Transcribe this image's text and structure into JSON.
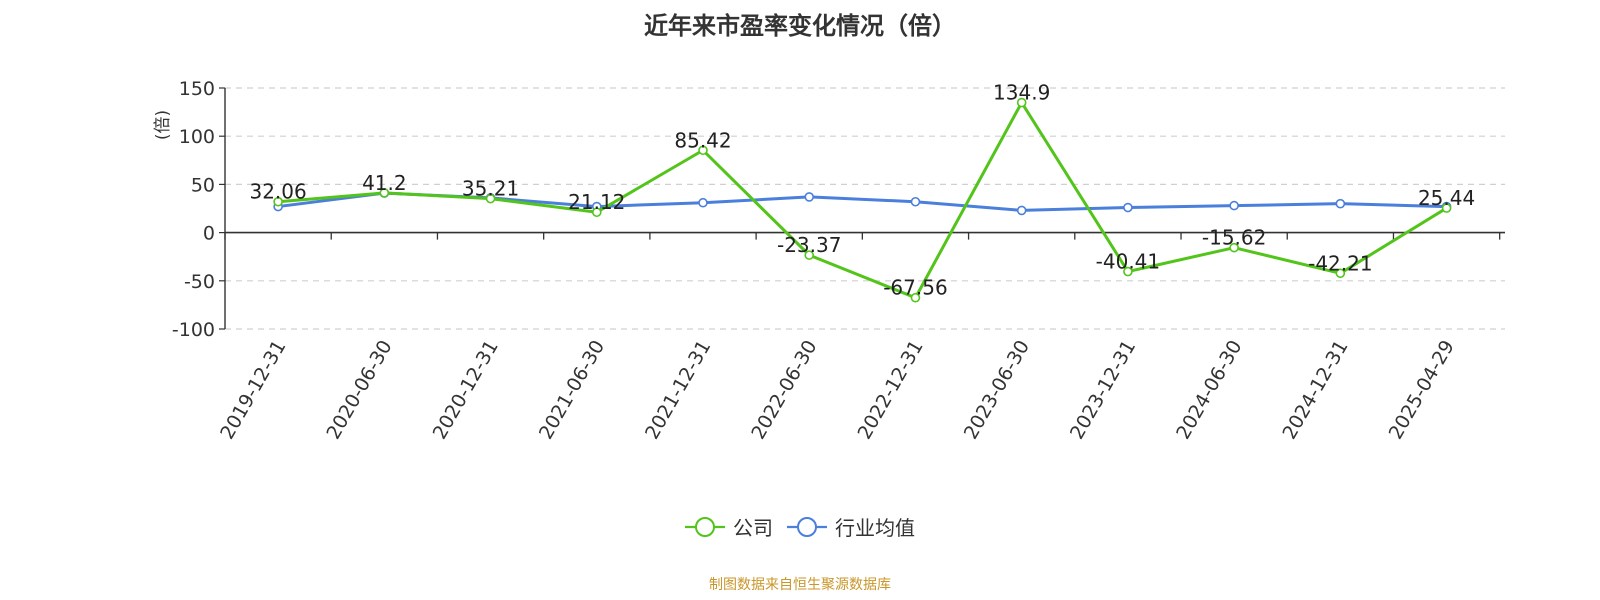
{
  "chart_data": {
    "type": "line",
    "title": "近年来市盈率变化情况（倍）",
    "ylabel": "(倍)",
    "ylim": [
      -100,
      150
    ],
    "yticks": [
      -100,
      -50,
      0,
      50,
      100,
      150
    ],
    "grid": true,
    "legend_position": "bottom-center",
    "categories": [
      "2019-12-31",
      "2020-06-30",
      "2020-12-31",
      "2021-06-30",
      "2021-12-31",
      "2022-06-30",
      "2022-12-31",
      "2023-06-30",
      "2023-12-31",
      "2024-06-30",
      "2024-12-31",
      "2025-04-29"
    ],
    "series": [
      {
        "name": "公司",
        "color": "#52c41a",
        "values": [
          32.06,
          41.2,
          35.21,
          21.12,
          85.42,
          -23.37,
          -67.56,
          134.9,
          -40.41,
          -15.62,
          -42.21,
          25.44
        ],
        "data_labels": [
          "32.06",
          "41.2",
          "35.21",
          "21.12",
          "85.42",
          "-23.37",
          "-67.56",
          "134.9",
          "-40.41",
          "-15.62",
          "-42.21",
          "25.44"
        ]
      },
      {
        "name": "行业均值",
        "color": "#4a7fdc",
        "values": [
          27,
          41,
          36,
          27,
          31,
          37,
          32,
          23,
          26,
          28,
          30,
          27
        ]
      }
    ]
  },
  "source": {
    "text": "制图数据来自恒生聚源数据库",
    "color": "#c9962a"
  },
  "colors": {
    "ylabel": "#e02020",
    "grid": "#d0d0d0",
    "axis": "#333333"
  }
}
